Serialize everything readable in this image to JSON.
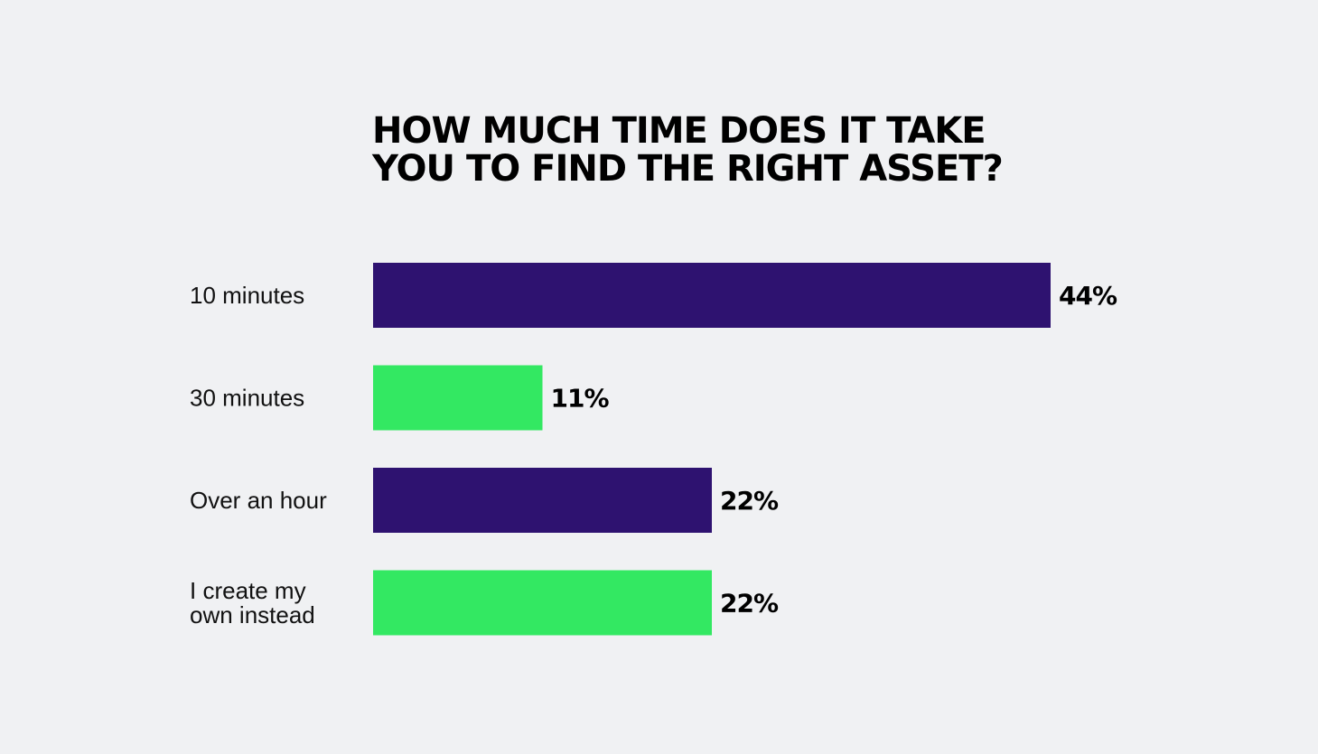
{
  "chart_data": {
    "type": "bar",
    "orientation": "horizontal",
    "title": "HOW MUCH TIME DOES IT TAKE YOU TO FIND THE RIGHT ASSET?",
    "title_lines": [
      "HOW MUCH TIME DOES IT TAKE",
      "YOU TO FIND THE RIGHT ASSET?"
    ],
    "categories": [
      "10 minutes",
      "30 minutes",
      "Over an hour",
      "I create my own instead"
    ],
    "category_lines": [
      [
        "10 minutes"
      ],
      [
        "30 minutes"
      ],
      [
        "Over an hour"
      ],
      [
        "I create my",
        "own instead"
      ]
    ],
    "values": [
      44,
      11,
      22,
      22
    ],
    "value_labels": [
      "44%",
      "11%",
      "22%",
      "22%"
    ],
    "bar_colors": [
      "#2e1270",
      "#33e862",
      "#2e1270",
      "#33e862"
    ],
    "unit": "%",
    "xlim": [
      0,
      44
    ],
    "grid": false,
    "xlabel": "",
    "ylabel": ""
  }
}
